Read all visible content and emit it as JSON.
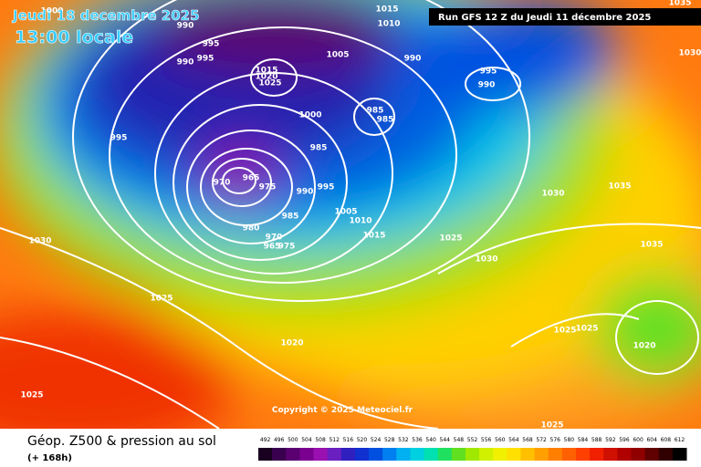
{
  "header": {
    "date": "Jeudi 18 decembre 2025",
    "time": "13:00 locale",
    "run": "Run GFS 12 Z du Jeudi 11 décembre 2025"
  },
  "map": {
    "copyright": "Copyright © 2025 Meteociel.fr",
    "isobar_labels": [
      1000,
      990,
      995,
      995,
      990,
      1015,
      1010,
      1005,
      990,
      995,
      990,
      1035,
      1030,
      1015,
      1020,
      1025,
      1000,
      985,
      985,
      995,
      985,
      965,
      970,
      975,
      990,
      995,
      1005,
      1010,
      985,
      980,
      1015,
      970,
      965,
      975,
      1025,
      1030,
      1030,
      1035,
      1035,
      1030,
      1025,
      1020,
      1025,
      1025,
      1020,
      1025,
      1025
    ]
  },
  "footer": {
    "title": "Géop. Z500 & pression au sol",
    "lead": "(+ 168h)"
  },
  "colorbar": {
    "ticks": [
      492,
      496,
      500,
      504,
      508,
      512,
      516,
      520,
      524,
      528,
      532,
      536,
      540,
      544,
      548,
      552,
      556,
      560,
      564,
      568,
      572,
      576,
      580,
      584,
      588,
      592,
      596,
      600,
      604,
      608,
      612
    ],
    "colors": [
      "#1a0020",
      "#3a0050",
      "#5a0070",
      "#7a0090",
      "#9a10b0",
      "#6a20c0",
      "#3020c0",
      "#1030d0",
      "#0050e0",
      "#0080f0",
      "#00b0f0",
      "#00d0e0",
      "#00e0b0",
      "#20e060",
      "#60e020",
      "#a0e800",
      "#d0f000",
      "#f0f000",
      "#ffe000",
      "#ffc000",
      "#ffa000",
      "#ff8000",
      "#ff6000",
      "#ff4000",
      "#f02000",
      "#d01000",
      "#b00000",
      "#900000",
      "#600000",
      "#300000",
      "#000000"
    ]
  }
}
